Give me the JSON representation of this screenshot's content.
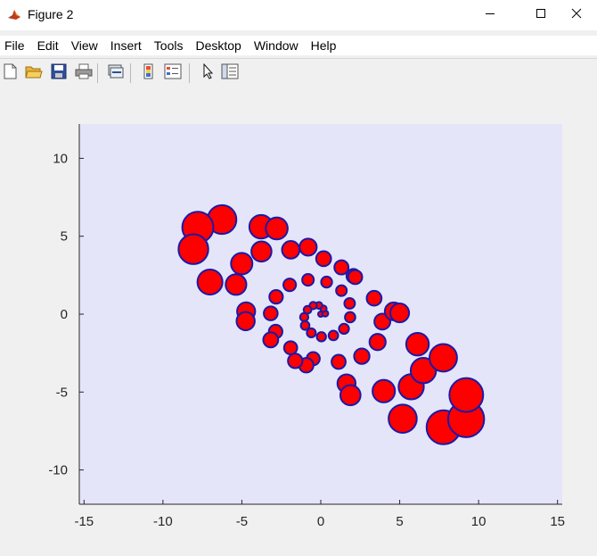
{
  "window": {
    "title": "Figure 2",
    "app_icon": "matlab-icon",
    "controls": [
      "minimize-icon",
      "maximize-icon",
      "close-icon"
    ]
  },
  "menu": {
    "items": [
      "File",
      "Edit",
      "View",
      "Insert",
      "Tools",
      "Desktop",
      "Window",
      "Help"
    ]
  },
  "toolbar": {
    "icons": [
      "new-figure-icon",
      "open-file-icon",
      "save-icon",
      "print-icon",
      "link-plot-icon",
      "insert-colorbar-icon",
      "insert-legend-icon",
      "edit-plot-arrow-icon",
      "property-inspector-icon"
    ]
  },
  "chart_data": {
    "type": "scatter",
    "title": "",
    "xlabel": "",
    "ylabel": "",
    "xlim": [
      -15.3,
      15.3
    ],
    "ylim": [
      -12.2,
      12.2
    ],
    "xticks": [
      -15,
      -10,
      -5,
      0,
      5,
      10,
      15
    ],
    "yticks": [
      -10,
      -5,
      0,
      5,
      10
    ],
    "grid": false,
    "legend": "none",
    "axes_background": "#e5e5fa",
    "marker_face_color": "#ff0000",
    "marker_edge_color": "#1a1aa8",
    "marker_size_note": "marker size grows with distance from origin",
    "series": [
      {
        "x": [
          0,
          0.28,
          0.17,
          -0.12,
          -0.48,
          -0.84,
          -1.05,
          -0.99,
          -0.6,
          0.04,
          0.8,
          1.47,
          1.86,
          1.83,
          1.31,
          0.37,
          -0.81,
          -1.97,
          -2.83,
          -3.17,
          -2.86,
          -1.91,
          -0.48,
          1.13,
          2.6,
          3.6,
          3.9,
          3.38,
          2.07,
          0.18,
          -1.9,
          -3.76,
          -5.01,
          -5.37,
          -4.73,
          -3.17,
          -0.92,
          1.63,
          3.99,
          5.73,
          6.5,
          6.13,
          4.62,
          2.18,
          -0.8,
          -3.78,
          -6.26,
          -7.79,
          -8.07,
          -7.02,
          -4.76,
          -1.62,
          1.88,
          5.19,
          7.78,
          9.21,
          9.22,
          7.76,
          5.0,
          1.31,
          -2.79
        ],
        "y": [
          0,
          0.04,
          0.35,
          0.56,
          0.55,
          0.28,
          -0.19,
          -0.73,
          -1.2,
          -1.45,
          -1.37,
          -0.94,
          -0.2,
          0.69,
          1.51,
          2.06,
          2.2,
          1.88,
          1.11,
          0.05,
          -1.12,
          -2.16,
          -2.86,
          -3.06,
          -2.7,
          -1.79,
          -0.48,
          1.02,
          2.45,
          3.56,
          4.13,
          4.02,
          3.24,
          1.9,
          0.18,
          -1.65,
          -3.28,
          -4.45,
          -4.94,
          -4.66,
          -3.62,
          -1.93,
          0.18,
          2.38,
          4.3,
          5.61,
          6.07,
          5.57,
          4.17,
          2.06,
          -0.45,
          -3.0,
          -5.2,
          -6.71,
          -7.26,
          -6.74,
          -5.19,
          -2.8,
          0.08,
          3.0,
          5.5
        ]
      }
    ]
  }
}
